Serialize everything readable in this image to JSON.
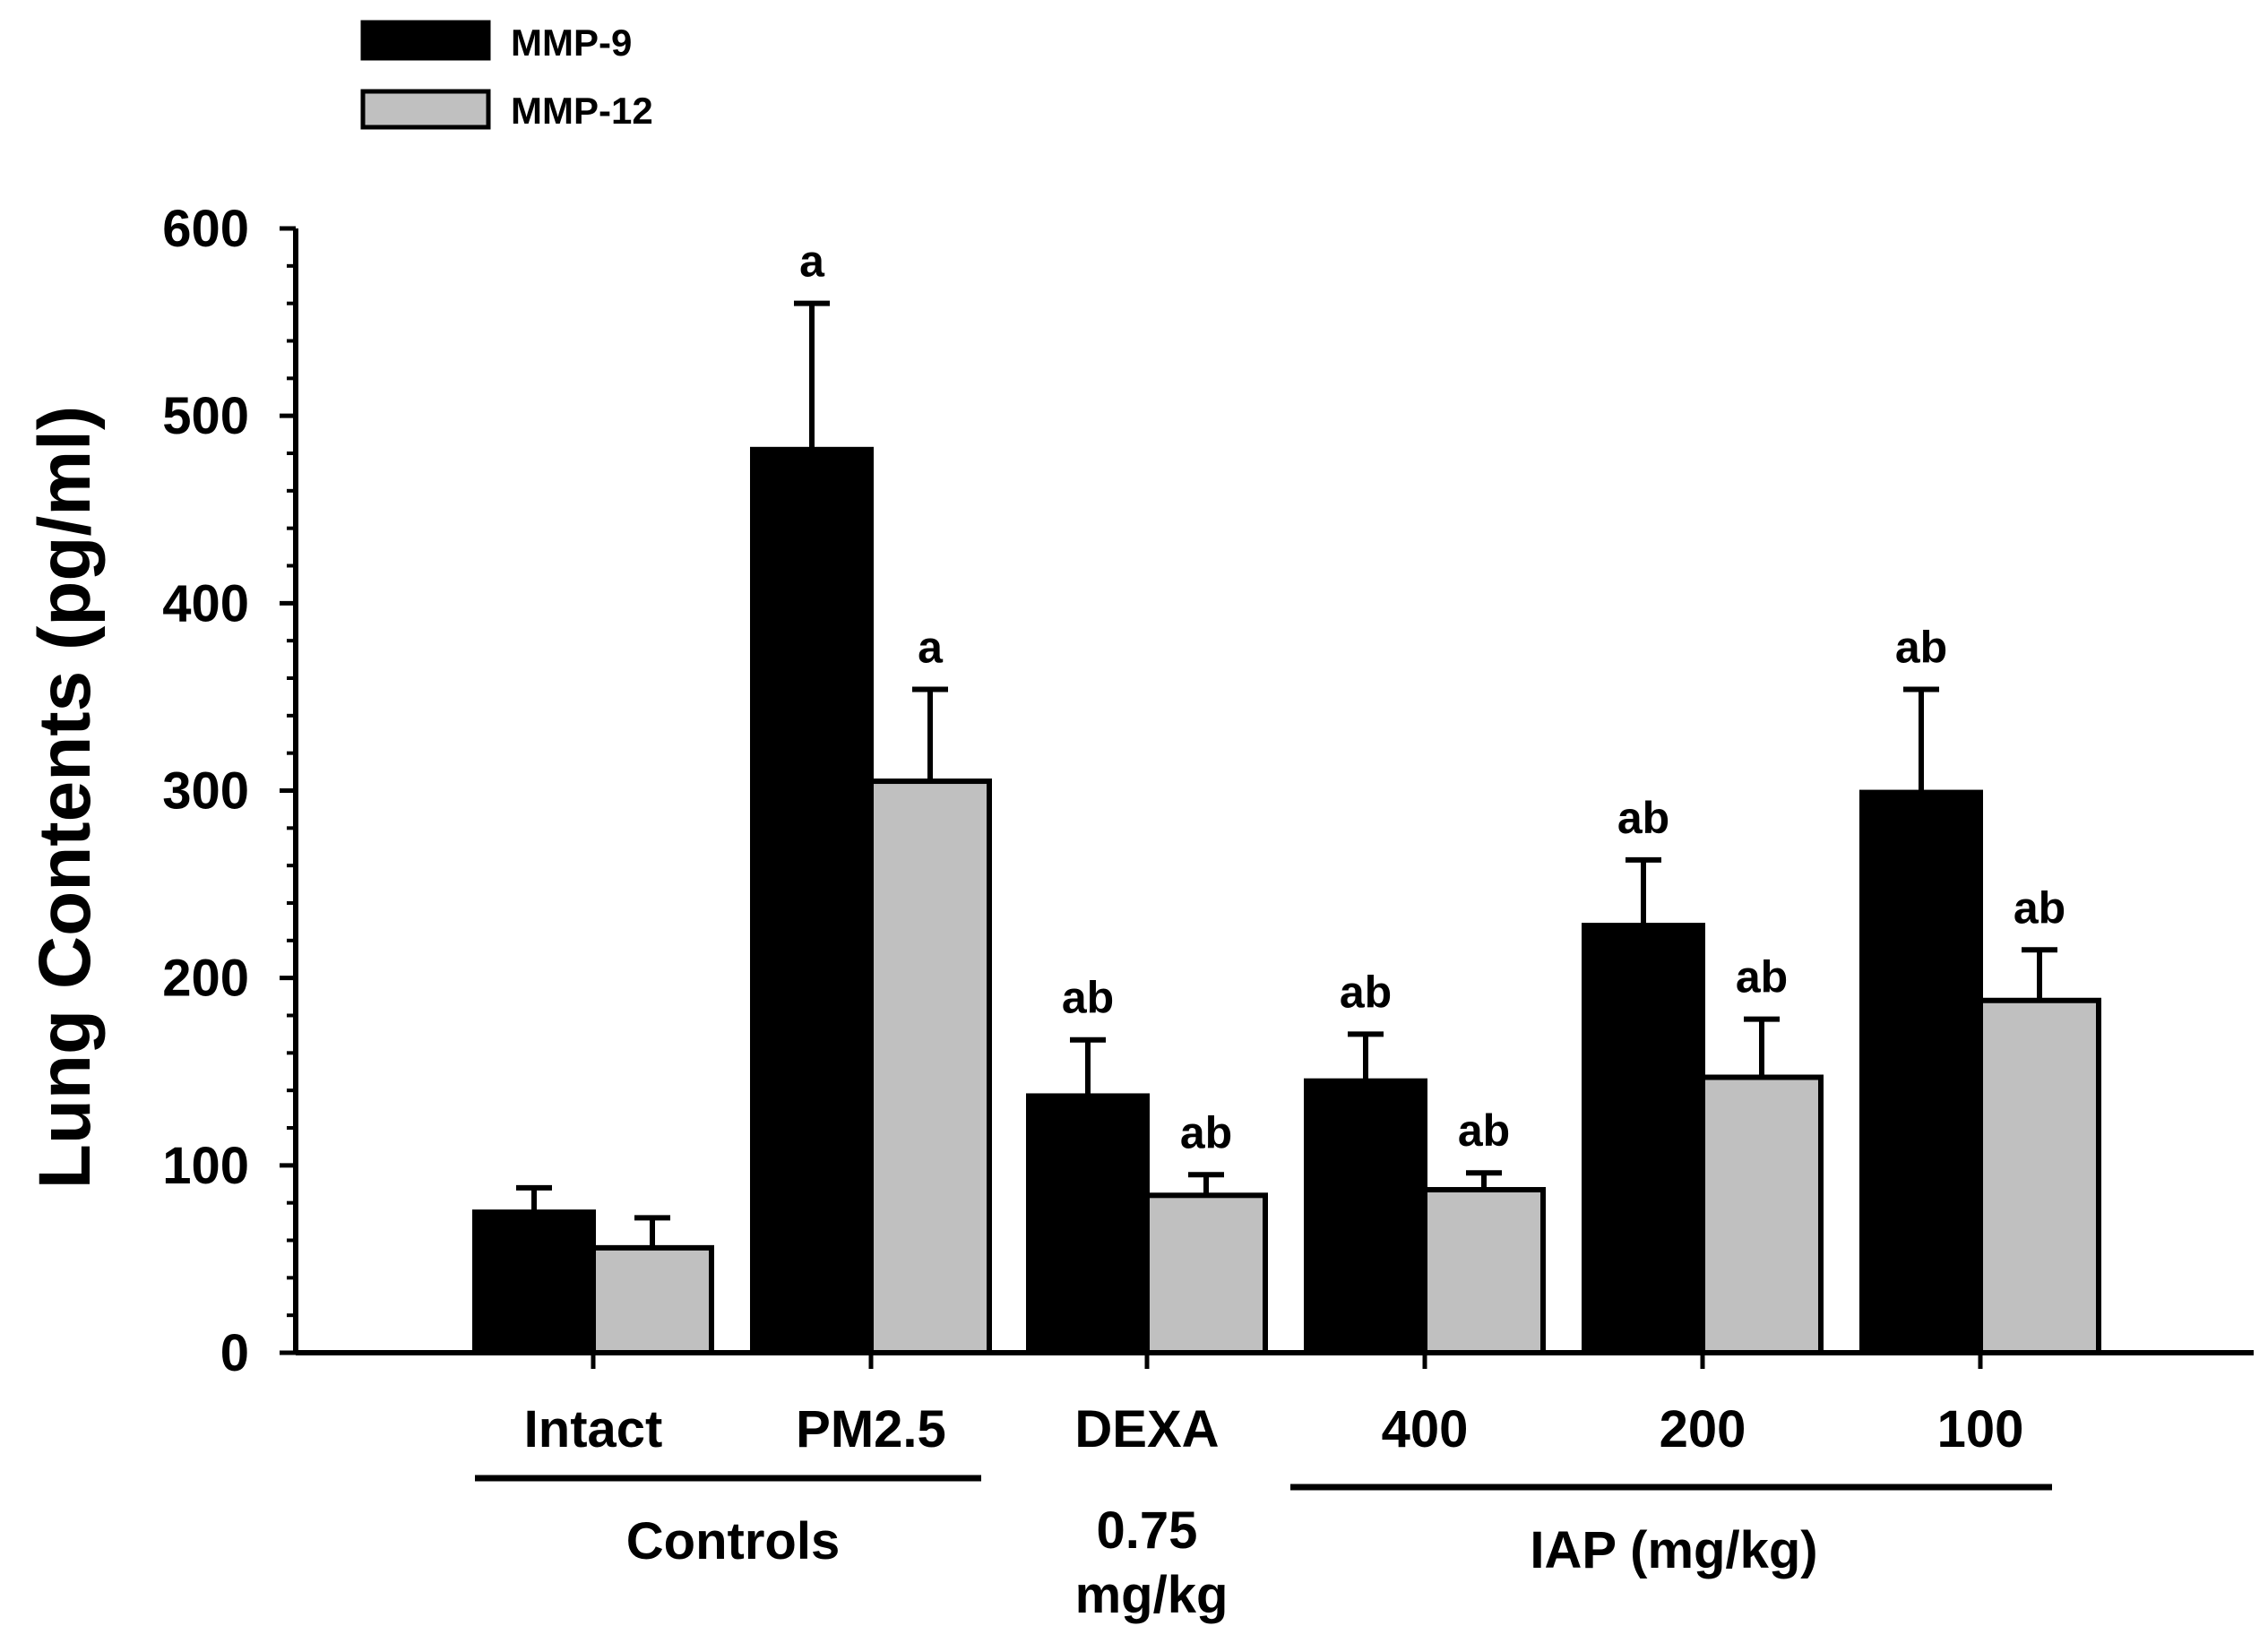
{
  "chart_data": {
    "type": "bar",
    "title": "",
    "xlabel": "",
    "ylabel": "Lung Contents (pg/ml)",
    "ylim": [
      0,
      600
    ],
    "yticks": [
      0,
      100,
      200,
      300,
      400,
      500,
      600
    ],
    "categories": [
      "Intact",
      "PM2.5",
      "DEXA",
      "400",
      "200",
      "100"
    ],
    "series": [
      {
        "name": "MMP-9",
        "color": "#000000",
        "values": [
          75,
          482,
          137,
          145,
          228,
          299
        ],
        "errors": [
          13,
          78,
          30,
          25,
          35,
          55
        ],
        "annotations": [
          "",
          "a",
          "ab",
          "ab",
          "ab",
          "ab"
        ]
      },
      {
        "name": "MMP-12",
        "color": "#c0c0c0",
        "values": [
          56,
          305,
          84,
          87,
          147,
          188
        ],
        "errors": [
          16,
          49,
          11,
          9,
          31,
          27
        ],
        "annotations": [
          "",
          "a",
          "ab",
          "ab",
          "ab",
          "ab"
        ]
      }
    ],
    "group_labels": [
      {
        "label": "Controls",
        "categories": [
          "Intact",
          "PM2.5"
        ]
      },
      {
        "label": "IAP (mg/kg)",
        "categories": [
          "400",
          "200",
          "100"
        ]
      }
    ],
    "sublabels": [
      {
        "category": "DEXA",
        "lines": [
          "0.75",
          "mg/kg"
        ]
      }
    ],
    "legend": {
      "position": "top-left",
      "entries": [
        "MMP-9",
        "MMP-12"
      ]
    }
  }
}
